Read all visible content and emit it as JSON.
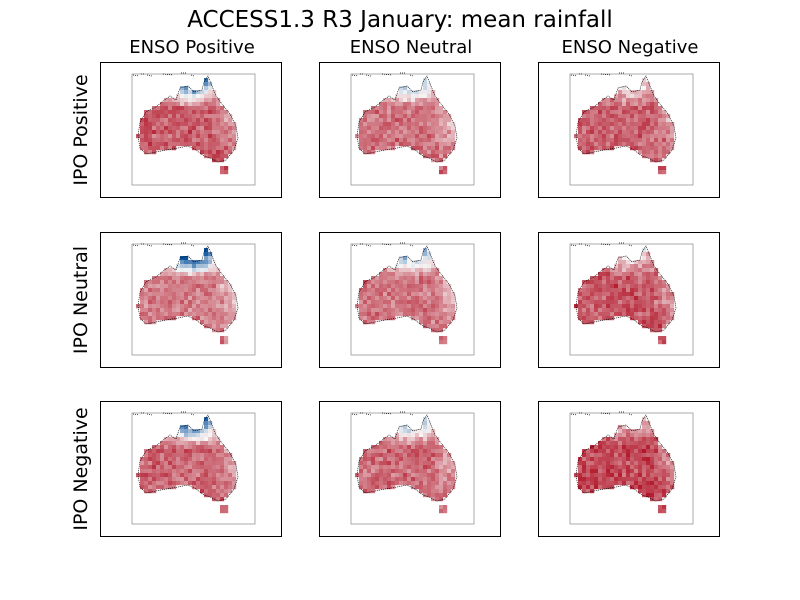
{
  "chart_data": {
    "type": "heatmap",
    "title": "ACCESS1.3 R3 January: mean rainfall",
    "columns": [
      "ENSO Positive",
      "ENSO Neutral",
      "ENSO Negative"
    ],
    "rows": [
      "IPO Positive",
      "IPO Neutral",
      "IPO Negative"
    ],
    "colormap": "RdBu",
    "colors": {
      "dry": "#b2182b",
      "wet": "#08519c",
      "mid": "#f7f7f7"
    },
    "panels": [
      {
        "row": "IPO Positive",
        "column": "ENSO Positive",
        "north_wetness": 0.8,
        "overall_dryness": 0.75
      },
      {
        "row": "IPO Positive",
        "column": "ENSO Neutral",
        "north_wetness": 0.55,
        "overall_dryness": 0.65
      },
      {
        "row": "IPO Positive",
        "column": "ENSO Negative",
        "north_wetness": 0.35,
        "overall_dryness": 0.72
      },
      {
        "row": "IPO Neutral",
        "column": "ENSO Positive",
        "north_wetness": 1.0,
        "overall_dryness": 0.6
      },
      {
        "row": "IPO Neutral",
        "column": "ENSO Neutral",
        "north_wetness": 0.6,
        "overall_dryness": 0.62
      },
      {
        "row": "IPO Neutral",
        "column": "ENSO Negative",
        "north_wetness": 0.4,
        "overall_dryness": 0.78
      },
      {
        "row": "IPO Negative",
        "column": "ENSO Positive",
        "north_wetness": 0.85,
        "overall_dryness": 0.7
      },
      {
        "row": "IPO Negative",
        "column": "ENSO Neutral",
        "north_wetness": 0.55,
        "overall_dryness": 0.68
      },
      {
        "row": "IPO Negative",
        "column": "ENSO Negative",
        "north_wetness": 0.3,
        "overall_dryness": 0.85
      }
    ]
  }
}
